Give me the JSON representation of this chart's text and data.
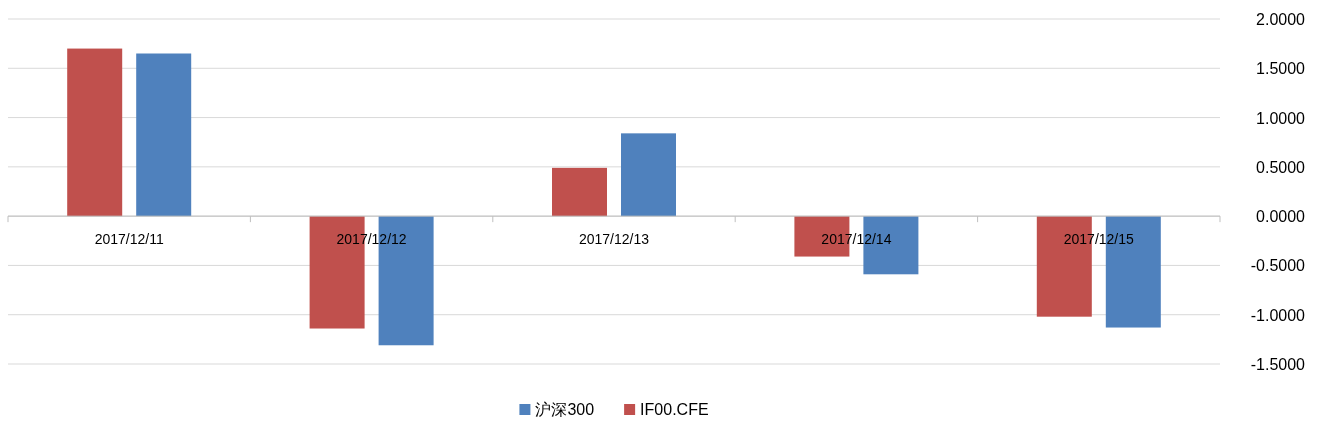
{
  "chart_data": {
    "type": "bar",
    "categories": [
      "2017/12/11",
      "2017/12/12",
      "2017/12/13",
      "2017/12/14",
      "2017/12/15"
    ],
    "series": [
      {
        "name": "IF00.CFE",
        "color": "#c0504d",
        "values": [
          1.7,
          -1.14,
          0.49,
          -0.41,
          -1.02
        ]
      },
      {
        "name": "沪深300",
        "color": "#4f81bd",
        "values": [
          1.65,
          -1.31,
          0.84,
          -0.59,
          -1.13
        ]
      }
    ],
    "ylim": [
      -1.5,
      2
    ],
    "yticks": [
      {
        "value": -1.5,
        "label": "-1.5000"
      },
      {
        "value": -1,
        "label": "-1.0000"
      },
      {
        "value": -0.5,
        "label": "-0.5000"
      },
      {
        "value": 0,
        "label": "0.0000"
      },
      {
        "value": 0.5,
        "label": "0.5000"
      },
      {
        "value": 1,
        "label": "1.0000"
      },
      {
        "value": 1.5,
        "label": "1.5000"
      },
      {
        "value": 2,
        "label": "2.0000"
      }
    ],
    "grid": "y",
    "legend": "bottom"
  }
}
